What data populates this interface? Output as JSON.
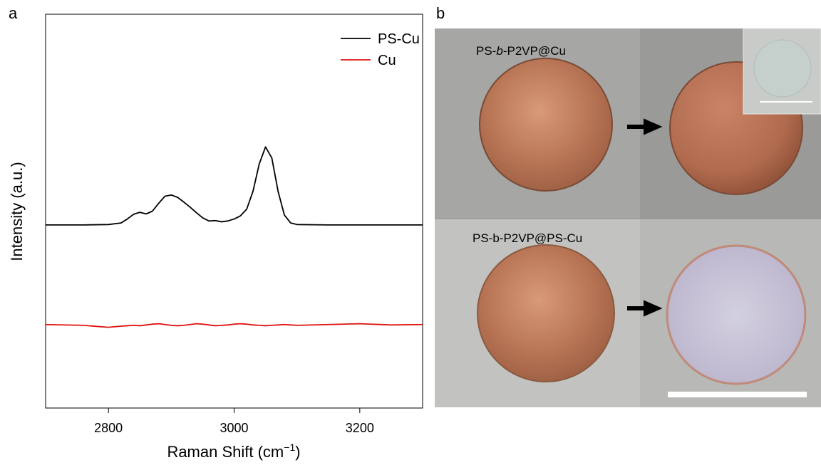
{
  "panel_labels": [
    "a",
    "b"
  ],
  "chart_data": {
    "type": "line",
    "ylabel": "Intensity (a.u.)",
    "xlabel": [
      "Raman Shift (cm",
      "−1",
      ")"
    ],
    "x": [
      2700,
      2760,
      2800,
      2820,
      2830,
      2840,
      2850,
      2860,
      2870,
      2880,
      2890,
      2900,
      2910,
      2920,
      2930,
      2940,
      2950,
      2960,
      2970,
      2980,
      2990,
      3000,
      3010,
      3020,
      3030,
      3040,
      3050,
      3060,
      3070,
      3080,
      3090,
      3100,
      3150,
      3200,
      3250,
      3300
    ],
    "series": [
      {
        "name": "PS-Cu",
        "color": "#000000",
        "values": [
          46.5,
          46.5,
          46.6,
          47.0,
          48.0,
          49.2,
          49.7,
          49.3,
          50.0,
          52.0,
          53.8,
          54.1,
          53.5,
          52.3,
          51.0,
          49.6,
          48.3,
          47.5,
          47.6,
          47.3,
          47.5,
          48.0,
          48.8,
          50.5,
          55.0,
          62.0,
          66.3,
          63.5,
          55.0,
          49.0,
          47.0,
          46.6,
          46.5,
          46.5,
          46.5,
          46.5
        ]
      },
      {
        "name": "Cu",
        "color": "#e01010",
        "values": [
          21.2,
          21.0,
          20.5,
          20.8,
          20.9,
          21.0,
          20.9,
          21.1,
          21.3,
          21.4,
          21.2,
          21.0,
          20.9,
          21.0,
          21.2,
          21.4,
          21.3,
          21.1,
          20.9,
          21.0,
          21.1,
          21.3,
          21.4,
          21.3,
          21.1,
          21.0,
          20.9,
          21.0,
          21.1,
          21.2,
          21.1,
          21.0,
          21.2,
          21.4,
          21.1,
          21.2
        ]
      }
    ],
    "xlim": [
      2700,
      3300
    ],
    "xticks": [
      2800,
      3000,
      3200
    ],
    "ylim": [
      0,
      100
    ],
    "legend": "upper right"
  },
  "photos": {
    "top_label": [
      "PS-",
      "b",
      "-P2VP@Cu"
    ],
    "bottom_label": "PS-b-P2VP@PS-Cu"
  }
}
